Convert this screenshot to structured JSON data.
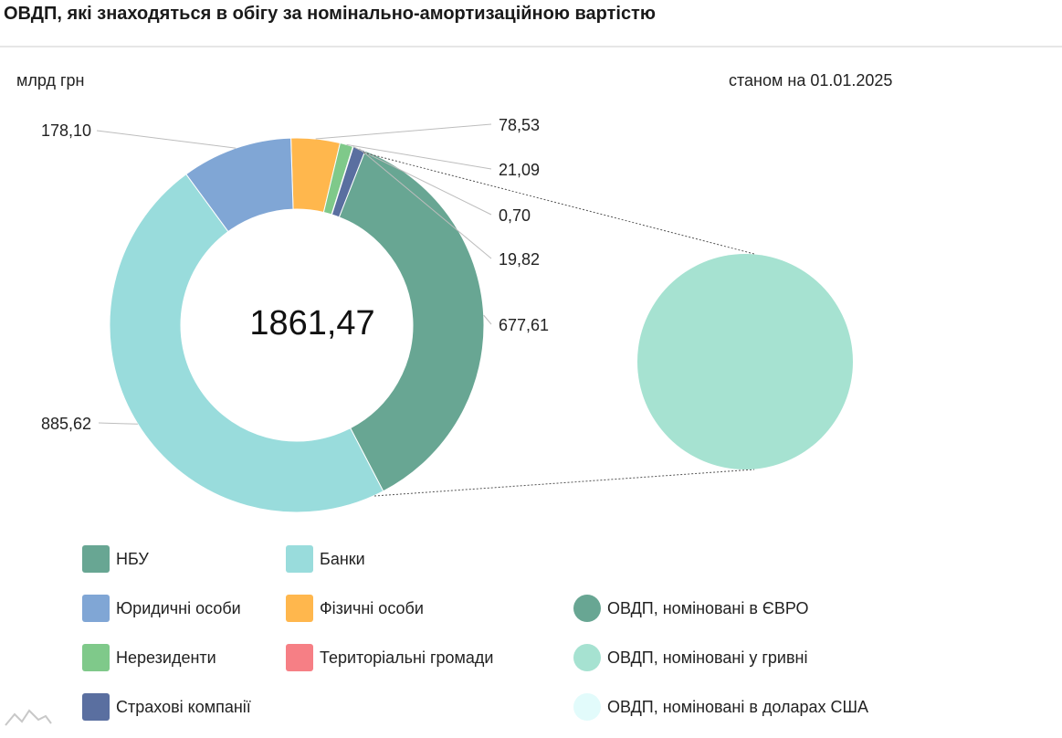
{
  "title": "ОВДП, які знаходяться в обігу за номінально-амортизаційною вартістю",
  "unit_label": "млрд грн",
  "as_of_label": "станом на 01.01.2025",
  "chart_data": {
    "type": "pie",
    "variant": "donut with breakout circle",
    "total_label": "1861,47",
    "slices": [
      {
        "name": "НБУ",
        "value": 677.61,
        "label": "677,61",
        "color": "#68a693"
      },
      {
        "name": "Банки",
        "value": 885.62,
        "label": "885,62",
        "color": "#99dcdc"
      },
      {
        "name": "Юридичні особи",
        "value": 178.1,
        "label": "178,10",
        "color": "#80a6d5"
      },
      {
        "name": "Фізичні особи",
        "value": 78.53,
        "label": "78,53",
        "color": "#ffb74d"
      },
      {
        "name": "Нерезиденти",
        "value": 21.09,
        "label": "21,09",
        "color": "#7fc98a"
      },
      {
        "name": "Територіальні громади",
        "value": 0.7,
        "label": "0,70",
        "color": "#f67f85"
      },
      {
        "name": "Страхові компанії",
        "value": 19.82,
        "label": "19,82",
        "color": "#5a6fa0"
      }
    ],
    "breakout": {
      "source_slice": "НБУ",
      "segments": [
        {
          "name": "ОВДП, номіновані в ЄВРО",
          "color": "#68a693"
        },
        {
          "name": "ОВДП, номіновані у гривні",
          "color": "#a6e2d1"
        },
        {
          "name": "ОВДП, номіновані в доларах США",
          "color": "#e2fbfb"
        }
      ]
    },
    "legend_position": "bottom"
  },
  "icons": {
    "logo": "mountain-logo-icon"
  }
}
